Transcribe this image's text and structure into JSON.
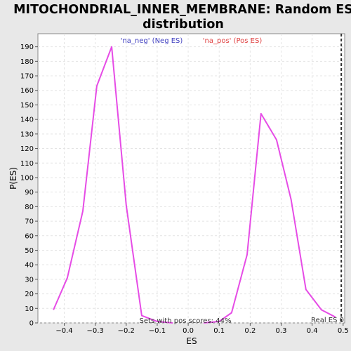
{
  "chart_data": {
    "type": "line",
    "title_line1": "MITOCHONDRIAL_INNER_MEMBRANE: Random ES",
    "title_line2": "distribution",
    "xlabel": "ES",
    "ylabel": "P(ES)",
    "xlim": [
      -0.485,
      0.505
    ],
    "ylim": [
      0,
      199
    ],
    "xticks": [
      -0.4,
      -0.3,
      -0.2,
      -0.1,
      0.0,
      0.1,
      0.2,
      0.3,
      0.4,
      0.5
    ],
    "xtick_labels": [
      "−0.4",
      "−0.3",
      "−0.2",
      "−0.1",
      "0.0",
      "0.1",
      "0.2",
      "0.3",
      "0.4",
      "0.5"
    ],
    "yticks": [
      0,
      10,
      20,
      30,
      40,
      50,
      60,
      70,
      80,
      90,
      100,
      110,
      120,
      130,
      140,
      150,
      160,
      170,
      180,
      190
    ],
    "grid": true,
    "series": [
      {
        "name": "'na_neg' (Neg ES)",
        "color": "#e64ce6",
        "x": [
          -0.435,
          -0.39,
          -0.34,
          -0.295,
          -0.247,
          -0.2,
          -0.15,
          -0.1,
          -0.05
        ],
        "y": [
          9,
          31,
          77,
          163,
          190,
          81,
          5,
          1,
          0
        ]
      },
      {
        "name": "'na_pos' (Pos ES)",
        "color": "#e64ce6",
        "x": [
          0.05,
          0.1,
          0.14,
          0.19,
          0.235,
          0.285,
          0.332,
          0.38,
          0.43,
          0.475
        ],
        "y": [
          0,
          1,
          7,
          47,
          144,
          126,
          85,
          23,
          9,
          4
        ]
      }
    ],
    "legend": [
      {
        "label": "'na_neg' (Neg ES)",
        "color": "#4040c0"
      },
      {
        "label": "'na_pos' (Pos ES)",
        "color": "#e04040"
      }
    ],
    "real_es_x": 0.494,
    "real_es_label": "Real ES 0",
    "annotation": "Sets with pos scores: 44%"
  }
}
